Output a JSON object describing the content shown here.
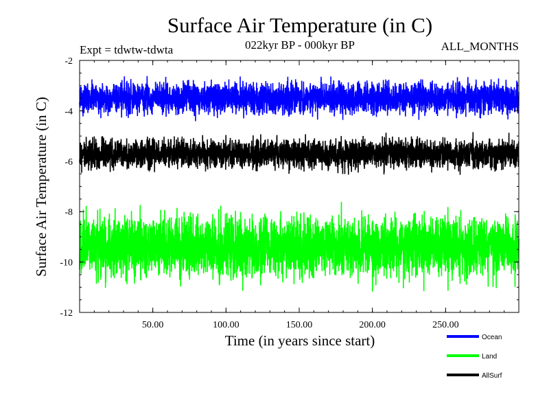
{
  "chart_data": {
    "type": "line",
    "title": "Surface Air Temperature (in C)",
    "subtitle": "022kyr BP - 000kyr BP",
    "experiment_label": "Expt = tdwtw-tdwta",
    "months_label": "ALL_MONTHS",
    "xlabel": "Time (in years since start)",
    "ylabel": "Surface Air Temperature (in C)",
    "xlim": [
      0,
      300
    ],
    "ylim": [
      -12,
      -2
    ],
    "x_ticks": [
      50,
      100,
      150,
      200,
      250
    ],
    "x_tick_labels": [
      "50.00",
      "100.00",
      "150.00",
      "200.00",
      "250.00"
    ],
    "y_ticks": [
      -12,
      -10,
      -8,
      -6,
      -4,
      -2
    ],
    "y_tick_labels": [
      "-12",
      "-10",
      "-8",
      "-6",
      "-4",
      "-2"
    ],
    "grid": false,
    "legend_position": "bottom-right",
    "series": [
      {
        "name": "Ocean",
        "color": "#0000ff",
        "mean": -3.5,
        "spread": 0.45,
        "min": -4.7,
        "max": -2.3,
        "n_points": 3600
      },
      {
        "name": "Land",
        "color": "#00ff00",
        "mean": -9.4,
        "spread": 0.85,
        "min": -11.6,
        "max": -7.2,
        "n_points": 3600
      },
      {
        "name": "AllSurf",
        "color": "#000000",
        "mean": -5.7,
        "spread": 0.4,
        "min": -6.8,
        "max": -4.6,
        "n_points": 3600
      }
    ]
  }
}
